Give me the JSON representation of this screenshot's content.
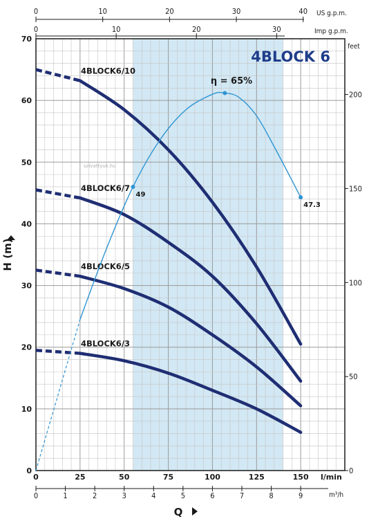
{
  "chart_data": {
    "type": "line",
    "title": "4BLOCK 6",
    "watermark": "szivattyuk.hu",
    "x_axis": {
      "label": "Q",
      "unit": "l/min",
      "range": [
        0,
        160
      ],
      "ticks": [
        "0",
        "25",
        "50",
        "75",
        "100",
        "125",
        "150"
      ]
    },
    "y_axis": {
      "label": "H (m)",
      "range": [
        0,
        70
      ],
      "ticks": [
        "0",
        "10",
        "20",
        "30",
        "40",
        "50",
        "60",
        "70"
      ]
    },
    "y_axis_right": {
      "unit": "feet",
      "ticks": [
        "0",
        "50",
        "100",
        "150",
        "200"
      ]
    },
    "x_axis_top_us": {
      "unit": "US g.p.m.",
      "ticks": [
        "0",
        "10",
        "20",
        "30",
        "40"
      ]
    },
    "x_axis_top_imp": {
      "unit": "Imp g.p.m.",
      "ticks": [
        "0",
        "10",
        "20",
        "30"
      ]
    },
    "x_axis_bottom_m3h": {
      "unit": "m³/h",
      "ticks": [
        "0",
        "1",
        "2",
        "3",
        "4",
        "5",
        "6",
        "7",
        "8",
        "9"
      ]
    },
    "recommended_range": [
      55,
      140
    ],
    "series": [
      {
        "name": "4BLOCK6/10",
        "x": [
          0,
          25,
          50,
          75,
          100,
          125,
          150
        ],
        "y": [
          65.0,
          63.2,
          58.5,
          52.0,
          43.5,
          33.0,
          20.5
        ],
        "dashed_until": 25
      },
      {
        "name": "4BLOCK6/7",
        "x": [
          0,
          25,
          50,
          75,
          100,
          125,
          150
        ],
        "y": [
          45.5,
          44.2,
          41.5,
          37.0,
          31.5,
          23.8,
          14.5
        ],
        "dashed_until": 25
      },
      {
        "name": "4BLOCK6/5",
        "x": [
          0,
          25,
          50,
          75,
          100,
          125,
          150
        ],
        "y": [
          32.5,
          31.5,
          29.5,
          26.5,
          22.0,
          16.8,
          10.5
        ],
        "dashed_until": 25
      },
      {
        "name": "4BLOCK6/3",
        "x": [
          0,
          25,
          50,
          75,
          100,
          125,
          150
        ],
        "y": [
          19.5,
          19.0,
          17.8,
          15.8,
          13.0,
          10.0,
          6.2
        ],
        "dashed_until": 25
      }
    ],
    "efficiency": {
      "label": "η = 65%",
      "x": [
        0,
        25,
        40,
        55,
        70,
        85,
        100,
        107,
        115,
        125,
        135,
        150
      ],
      "y": [
        0,
        24.5,
        36,
        46,
        53.5,
        58.5,
        61,
        61.2,
        60.5,
        57.5,
        52.5,
        44.3
      ],
      "dashed_until": 25,
      "points": [
        {
          "x": 55,
          "y": 46,
          "label": "49"
        },
        {
          "x": 107,
          "y": 61.2,
          "label": ""
        },
        {
          "x": 150,
          "y": 44.3,
          "label": "47.3"
        }
      ]
    },
    "grid": true,
    "colors": {
      "curve": "#1f2e73",
      "efficiency": "#2f95d3",
      "band": "#d2e8f4",
      "title": "#1f3d8a"
    }
  }
}
